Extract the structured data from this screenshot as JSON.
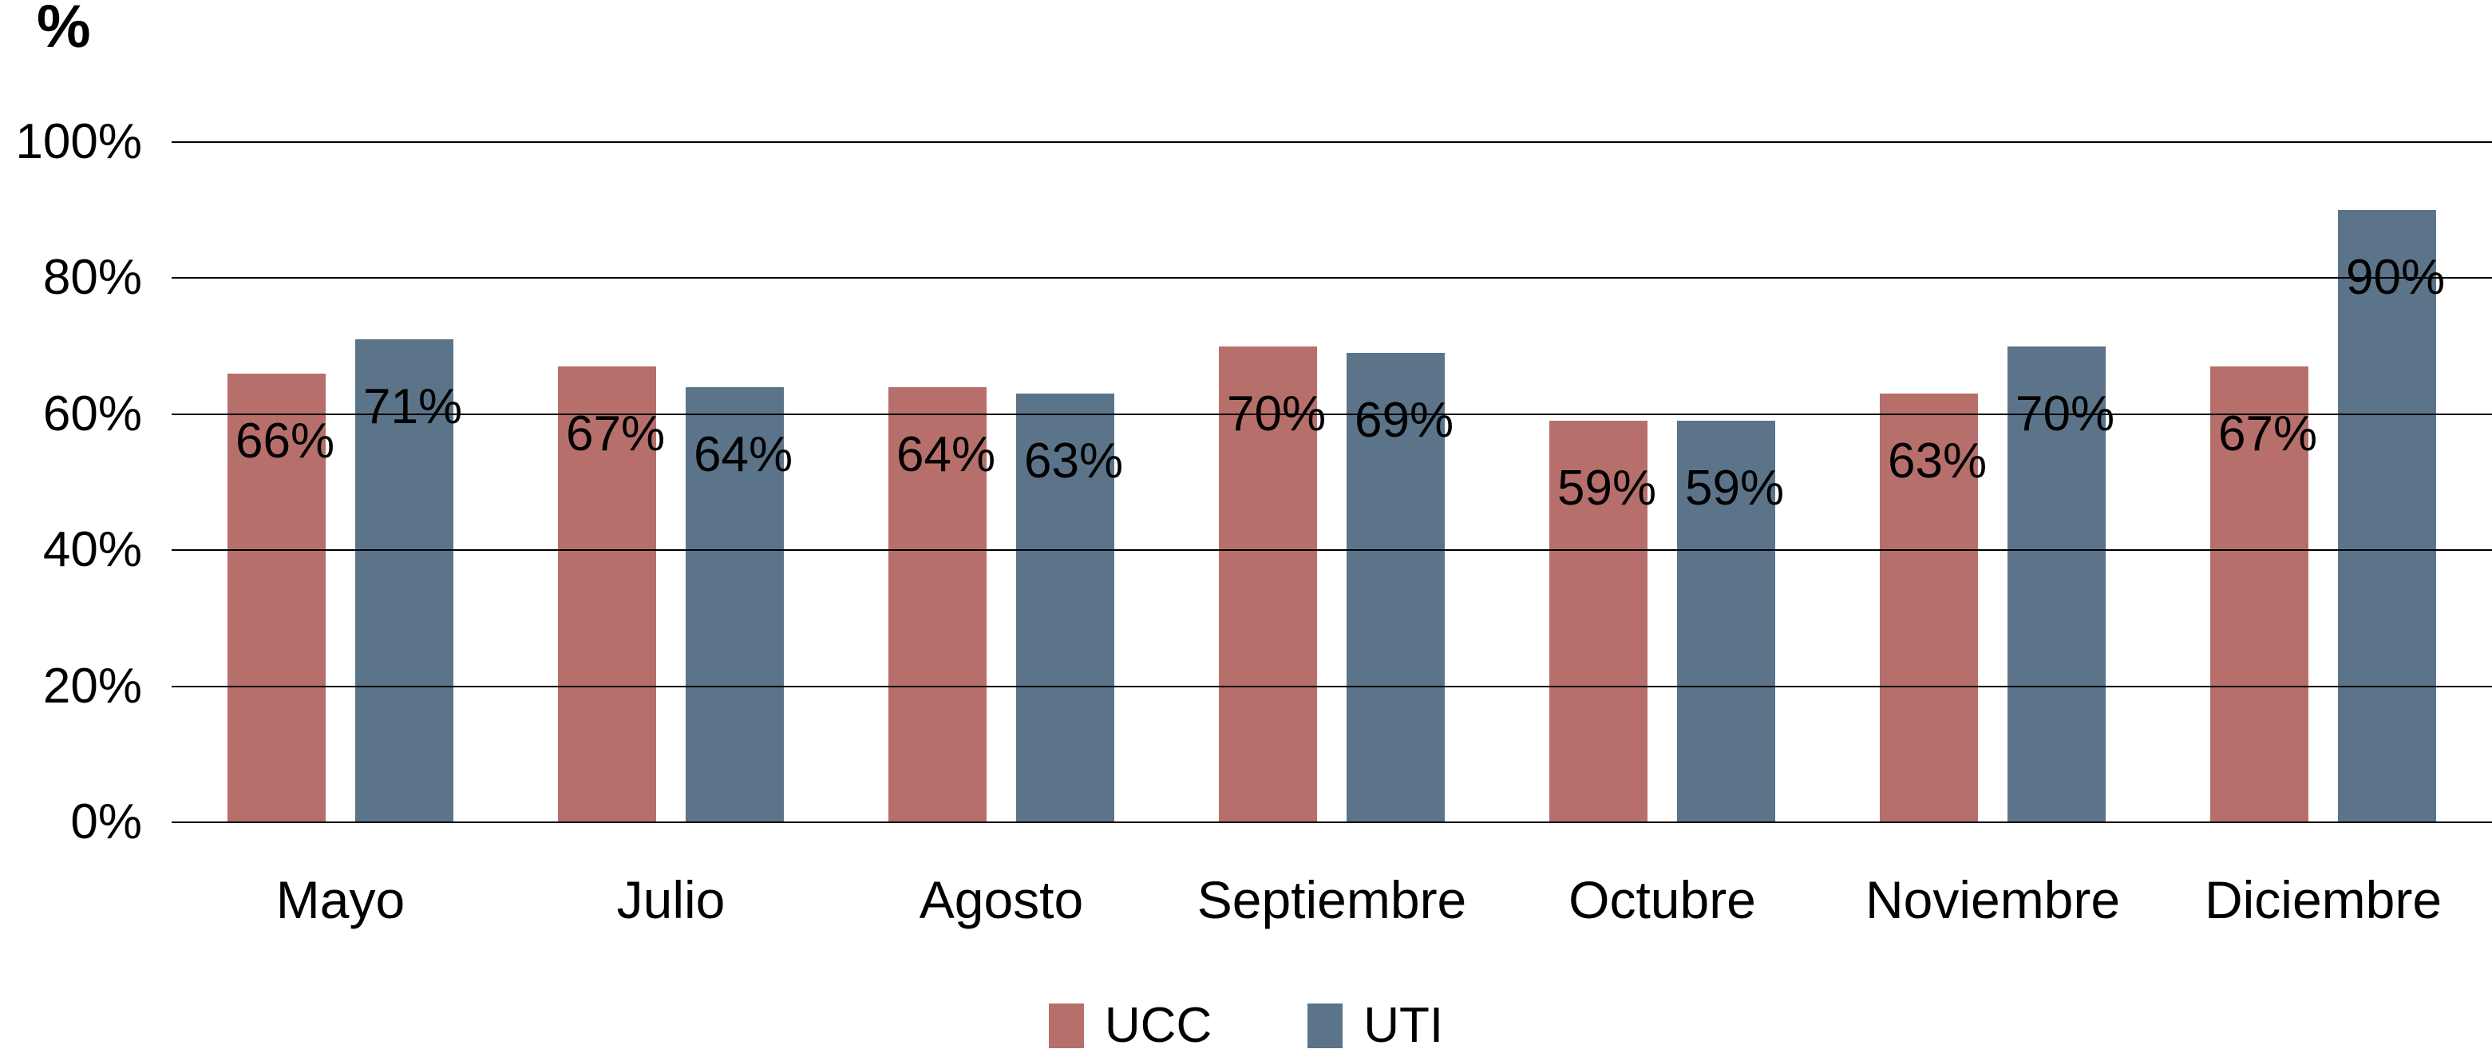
{
  "axis": {
    "y_title": "%"
  },
  "chart_data": {
    "type": "bar",
    "title": "",
    "xlabel": "",
    "ylabel": "%",
    "categories": [
      "Mayo",
      "Julio",
      "Agosto",
      "Septiembre",
      "Octubre",
      "Noviembre",
      "Diciembre"
    ],
    "series": [
      {
        "name": "UCC",
        "color": "#b76f6b",
        "values": [
          66,
          67,
          64,
          70,
          59,
          63,
          67
        ],
        "value_labels": [
          "66%",
          "67%",
          "64%",
          "70%",
          "59%",
          "63%",
          "67%"
        ]
      },
      {
        "name": "UTI",
        "color": "#5b748a",
        "values": [
          71,
          64,
          63,
          69,
          59,
          70,
          90
        ],
        "value_labels": [
          "71%",
          "64%",
          "63%",
          "69%",
          "59%",
          "70%",
          "90%"
        ]
      }
    ],
    "ylim": [
      0,
      100
    ],
    "yticks": [
      0,
      20,
      40,
      60,
      80,
      100
    ],
    "ytick_labels": [
      "0%",
      "20%",
      "40%",
      "60%",
      "80%",
      "100%"
    ],
    "grid": true,
    "data_labels": true,
    "legend_position": "bottom"
  },
  "legend": {
    "items": [
      {
        "label": "UCC",
        "color": "#b76f6b"
      },
      {
        "label": "UTI",
        "color": "#5b748a"
      }
    ]
  },
  "colors": {
    "grid": "#000000",
    "text": "#000000",
    "background": "#ffffff"
  }
}
